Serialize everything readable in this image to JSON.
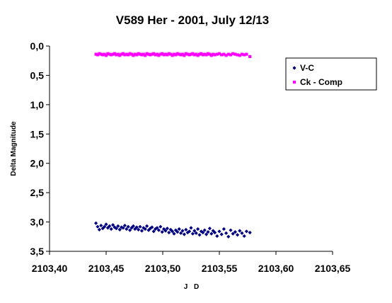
{
  "chart_data": {
    "type": "scatter",
    "title": "V589 Her - 2001, July 12/13",
    "xlabel": "J D",
    "ylabel": "Delta Magnitude",
    "xlim": [
      2103.4,
      2103.65
    ],
    "ylim": [
      0.0,
      3.5
    ],
    "y_inverted": true,
    "x_ticks": [
      "2103,40",
      "2103,45",
      "2103,50",
      "2103,55",
      "2103,60",
      "2103,65"
    ],
    "y_ticks": [
      "0,0",
      "0,5",
      "1,0",
      "1,5",
      "2,0",
      "2,5",
      "3,0",
      "3,5"
    ],
    "grid": false,
    "legend_position": "top-right",
    "series": [
      {
        "name": "V-C",
        "marker": "diamond",
        "color": "#000080",
        "x": [
          2103.441,
          2103.4425,
          2103.444,
          2103.4455,
          2103.447,
          2103.4485,
          2103.45,
          2103.4515,
          2103.453,
          2103.4545,
          2103.456,
          2103.4575,
          2103.459,
          2103.4605,
          2103.462,
          2103.4635,
          2103.465,
          2103.4665,
          2103.468,
          2103.4695,
          2103.471,
          2103.4725,
          2103.474,
          2103.4755,
          2103.477,
          2103.4785,
          2103.48,
          2103.4815,
          2103.483,
          2103.4845,
          2103.486,
          2103.4875,
          2103.489,
          2103.4905,
          2103.492,
          2103.4935,
          2103.495,
          2103.4965,
          2103.498,
          2103.4995,
          2103.501,
          2103.5025,
          2103.504,
          2103.5055,
          2103.507,
          2103.5085,
          2103.51,
          2103.5115,
          2103.513,
          2103.5145,
          2103.516,
          2103.5175,
          2103.519,
          2103.5205,
          2103.522,
          2103.5235,
          2103.525,
          2103.5265,
          2103.528,
          2103.5295,
          2103.531,
          2103.5325,
          2103.534,
          2103.5355,
          2103.537,
          2103.5385,
          2103.54,
          2103.5415,
          2103.543,
          2103.5445,
          2103.546,
          2103.548,
          2103.55,
          2103.552,
          2103.554,
          2103.556,
          2103.558,
          2103.56,
          2103.562,
          2103.564,
          2103.566,
          2103.568,
          2103.57,
          2103.572,
          2103.574,
          2103.577
        ],
        "y": [
          3.02,
          3.08,
          3.13,
          3.06,
          3.11,
          3.08,
          3.04,
          3.1,
          3.07,
          3.12,
          3.05,
          3.09,
          3.11,
          3.07,
          3.13,
          3.09,
          3.1,
          3.06,
          3.12,
          3.08,
          3.14,
          3.1,
          3.07,
          3.12,
          3.09,
          3.13,
          3.08,
          3.15,
          3.1,
          3.12,
          3.07,
          3.14,
          3.11,
          3.09,
          3.16,
          3.12,
          3.1,
          3.14,
          3.08,
          3.17,
          3.12,
          3.15,
          3.11,
          3.18,
          3.13,
          3.16,
          3.2,
          3.14,
          3.17,
          3.12,
          3.19,
          3.15,
          3.21,
          3.13,
          3.18,
          3.16,
          3.1,
          3.2,
          3.15,
          3.19,
          3.12,
          3.22,
          3.16,
          3.18,
          3.14,
          3.21,
          3.17,
          3.11,
          3.2,
          3.15,
          3.18,
          3.24,
          3.16,
          3.21,
          3.12,
          3.19,
          3.25,
          3.14,
          3.2,
          3.17,
          3.22,
          3.15,
          3.19,
          3.24,
          3.16,
          3.18
        ]
      },
      {
        "name": "Ck - Comp",
        "marker": "square",
        "color": "#ff00ff",
        "x": [
          2103.441,
          2103.4425,
          2103.444,
          2103.4455,
          2103.447,
          2103.4485,
          2103.45,
          2103.4515,
          2103.453,
          2103.4545,
          2103.456,
          2103.4575,
          2103.459,
          2103.4605,
          2103.462,
          2103.4635,
          2103.465,
          2103.4665,
          2103.468,
          2103.4695,
          2103.471,
          2103.4725,
          2103.474,
          2103.4755,
          2103.477,
          2103.4785,
          2103.48,
          2103.4815,
          2103.483,
          2103.4845,
          2103.486,
          2103.4875,
          2103.489,
          2103.4905,
          2103.492,
          2103.4935,
          2103.495,
          2103.4965,
          2103.498,
          2103.4995,
          2103.501,
          2103.5025,
          2103.504,
          2103.5055,
          2103.507,
          2103.5085,
          2103.51,
          2103.5115,
          2103.513,
          2103.5145,
          2103.516,
          2103.5175,
          2103.519,
          2103.5205,
          2103.522,
          2103.5235,
          2103.525,
          2103.5265,
          2103.528,
          2103.5295,
          2103.531,
          2103.5325,
          2103.534,
          2103.5355,
          2103.537,
          2103.5385,
          2103.54,
          2103.5415,
          2103.543,
          2103.5445,
          2103.546,
          2103.548,
          2103.55,
          2103.552,
          2103.554,
          2103.556,
          2103.558,
          2103.56,
          2103.562,
          2103.564,
          2103.566,
          2103.568,
          2103.57,
          2103.572,
          2103.574,
          2103.577
        ],
        "y": [
          0.14,
          0.15,
          0.13,
          0.14,
          0.15,
          0.14,
          0.16,
          0.13,
          0.14,
          0.15,
          0.14,
          0.13,
          0.15,
          0.14,
          0.16,
          0.14,
          0.13,
          0.15,
          0.14,
          0.15,
          0.13,
          0.14,
          0.16,
          0.14,
          0.15,
          0.13,
          0.14,
          0.15,
          0.14,
          0.16,
          0.13,
          0.14,
          0.15,
          0.14,
          0.13,
          0.15,
          0.14,
          0.16,
          0.14,
          0.13,
          0.15,
          0.14,
          0.15,
          0.13,
          0.14,
          0.16,
          0.14,
          0.15,
          0.13,
          0.14,
          0.15,
          0.14,
          0.16,
          0.13,
          0.14,
          0.15,
          0.14,
          0.13,
          0.15,
          0.14,
          0.16,
          0.14,
          0.13,
          0.15,
          0.14,
          0.15,
          0.13,
          0.14,
          0.16,
          0.14,
          0.15,
          0.14,
          0.13,
          0.15,
          0.14,
          0.16,
          0.14,
          0.15,
          0.13,
          0.14,
          0.15,
          0.16,
          0.14,
          0.15,
          0.14,
          0.18
        ]
      }
    ]
  }
}
